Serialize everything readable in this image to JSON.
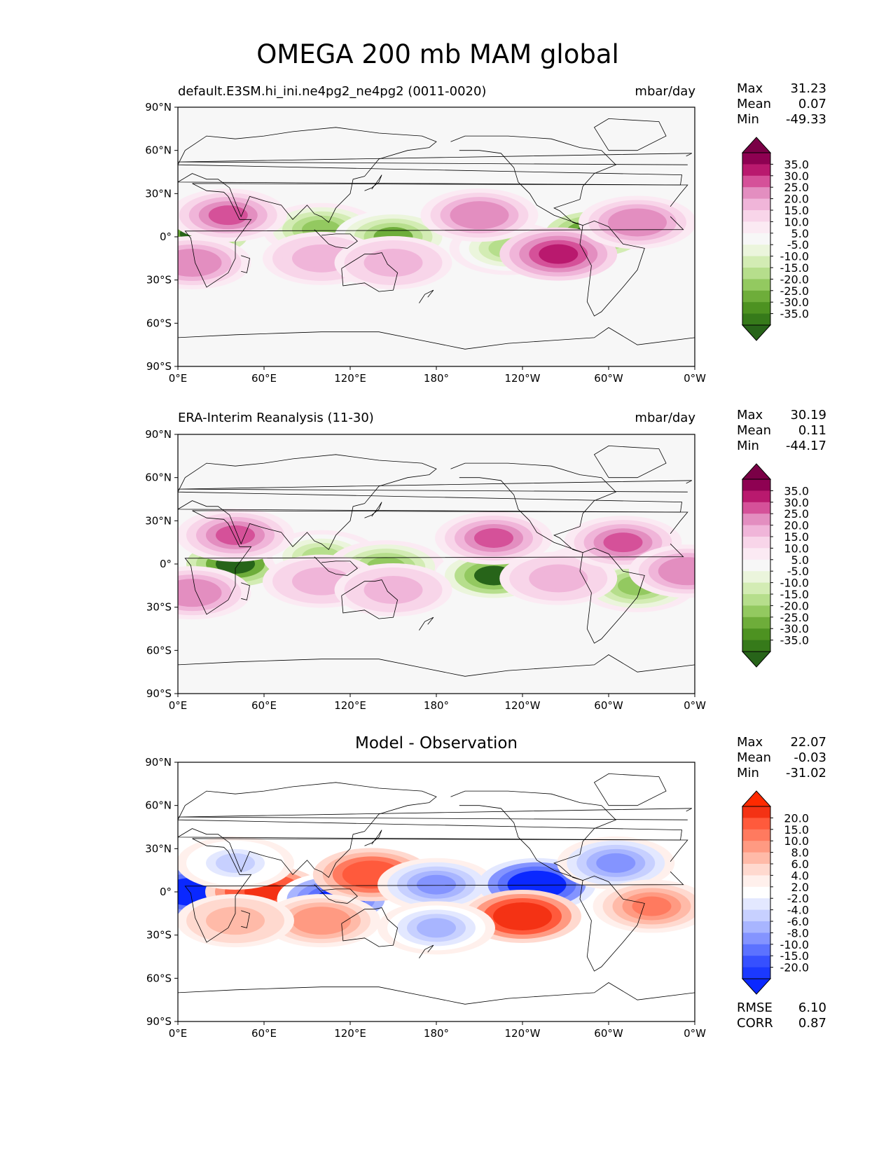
{
  "title": "OMEGA 200 mb MAM global",
  "panels": [
    {
      "left_title": "default.E3SM.hi_ini.ne4pg2_ne4pg2 (0011-0020)",
      "right_title": "mbar/day",
      "stats": [
        {
          "label": "Max",
          "value": "31.23"
        },
        {
          "label": "Mean",
          "value": "0.07"
        },
        {
          "label": "Min",
          "value": "-49.33"
        }
      ],
      "colorbar": {
        "labels": [
          "35.0",
          "30.0",
          "25.0",
          "20.0",
          "15.0",
          "10.0",
          "5.0",
          "-5.0",
          "-10.0",
          "-15.0",
          "-20.0",
          "-25.0",
          "-30.0",
          "-35.0"
        ],
        "colors": [
          "#7a0046",
          "#8e0152",
          "#b9196e",
          "#d55199",
          "#e38ec0",
          "#f0b5d9",
          "#f8d5e9",
          "#fbeaf3",
          "#f7f7f7",
          "#ebf5dc",
          "#d3ecb4",
          "#b6de8c",
          "#93c960",
          "#6ead3a",
          "#4d9221",
          "#367a1a",
          "#276419"
        ]
      }
    },
    {
      "left_title": "ERA-Interim Reanalysis (11-30)",
      "right_title": "mbar/day",
      "stats": [
        {
          "label": "Max",
          "value": "30.19"
        },
        {
          "label": "Mean",
          "value": "0.11"
        },
        {
          "label": "Min",
          "value": "-44.17"
        }
      ],
      "colorbar": {
        "labels": [
          "35.0",
          "30.0",
          "25.0",
          "20.0",
          "15.0",
          "10.0",
          "5.0",
          "-5.0",
          "-10.0",
          "-15.0",
          "-20.0",
          "-25.0",
          "-30.0",
          "-35.0"
        ],
        "colors": [
          "#7a0046",
          "#8e0152",
          "#b9196e",
          "#d55199",
          "#e38ec0",
          "#f0b5d9",
          "#f8d5e9",
          "#fbeaf3",
          "#f7f7f7",
          "#ebf5dc",
          "#d3ecb4",
          "#b6de8c",
          "#93c960",
          "#6ead3a",
          "#4d9221",
          "#367a1a",
          "#276419"
        ]
      }
    },
    {
      "center_title": "Model - Observation",
      "stats": [
        {
          "label": "Max",
          "value": "22.07"
        },
        {
          "label": "Mean",
          "value": "-0.03"
        },
        {
          "label": "Min",
          "value": "-31.02"
        }
      ],
      "extra_stats": [
        {
          "label": "RMSE",
          "value": "6.10"
        },
        {
          "label": "CORR",
          "value": "0.87"
        }
      ],
      "colorbar": {
        "labels": [
          "20.0",
          "15.0",
          "10.0",
          "8.0",
          "6.0",
          "4.0",
          "2.0",
          "-2.0",
          "-4.0",
          "-6.0",
          "-8.0",
          "-10.0",
          "-15.0",
          "-20.0"
        ],
        "colors": [
          "#ff2a00",
          "#f43214",
          "#ff5a3c",
          "#ff7a5f",
          "#ff9a82",
          "#ffbaa8",
          "#ffd9cf",
          "#fff0ec",
          "#ffffff",
          "#e3e8ff",
          "#c7d0ff",
          "#a8b5ff",
          "#8494ff",
          "#5c72ff",
          "#3650ff",
          "#1b39ff",
          "#0a28ff"
        ]
      }
    }
  ],
  "x_ticks": [
    "0°E",
    "60°E",
    "120°E",
    "180°",
    "120°W",
    "60°W",
    "0°W"
  ],
  "y_ticks": [
    "90°N",
    "60°N",
    "30°N",
    "0°",
    "30°S",
    "60°S",
    "90°S"
  ],
  "chart_data": [
    {
      "type": "heatmap",
      "title": "default.E3SM.hi_ini.ne4pg2_ne4pg2 (0011-0020)",
      "units": "mbar/day",
      "x_range": [
        0,
        360
      ],
      "y_range": [
        -90,
        90
      ],
      "stats": {
        "max": 31.23,
        "mean": 0.07,
        "min": -49.33
      },
      "levels": [
        -35,
        -30,
        -25,
        -20,
        -15,
        -10,
        -5,
        5,
        10,
        15,
        20,
        25,
        30,
        35
      ],
      "features": [
        {
          "lon": 15,
          "lat": 2,
          "value": -40
        },
        {
          "lon": 290,
          "lat": 2,
          "value": -40
        },
        {
          "lon": 100,
          "lat": 5,
          "value": -25
        },
        {
          "lon": 150,
          "lat": 0,
          "value": -30
        },
        {
          "lon": 230,
          "lat": -8,
          "value": -20
        },
        {
          "lon": 35,
          "lat": 15,
          "value": 25
        },
        {
          "lon": 10,
          "lat": -18,
          "value": 20
        },
        {
          "lon": 100,
          "lat": -15,
          "value": 15
        },
        {
          "lon": 150,
          "lat": -18,
          "value": 15
        },
        {
          "lon": 210,
          "lat": 15,
          "value": 20
        },
        {
          "lon": 265,
          "lat": -12,
          "value": 30
        },
        {
          "lon": 320,
          "lat": 10,
          "value": 20
        }
      ]
    },
    {
      "type": "heatmap",
      "title": "ERA-Interim Reanalysis (11-30)",
      "units": "mbar/day",
      "x_range": [
        0,
        360
      ],
      "y_range": [
        -90,
        90
      ],
      "stats": {
        "max": 30.19,
        "mean": 0.11,
        "min": -44.17
      },
      "levels": [
        -35,
        -30,
        -25,
        -20,
        -15,
        -10,
        -5,
        5,
        10,
        15,
        20,
        25,
        30,
        35
      ],
      "features": [
        {
          "lon": 40,
          "lat": 0,
          "value": -40
        },
        {
          "lon": 100,
          "lat": 5,
          "value": -20
        },
        {
          "lon": 145,
          "lat": -2,
          "value": -25
        },
        {
          "lon": 220,
          "lat": -8,
          "value": -35
        },
        {
          "lon": 290,
          "lat": -5,
          "value": -20
        },
        {
          "lon": 320,
          "lat": -15,
          "value": -25
        },
        {
          "lon": 40,
          "lat": 20,
          "value": 25
        },
        {
          "lon": 10,
          "lat": -20,
          "value": 20
        },
        {
          "lon": 100,
          "lat": -12,
          "value": 15
        },
        {
          "lon": 150,
          "lat": -18,
          "value": 15
        },
        {
          "lon": 220,
          "lat": 18,
          "value": 25
        },
        {
          "lon": 265,
          "lat": -10,
          "value": 15
        },
        {
          "lon": 310,
          "lat": 15,
          "value": 25
        },
        {
          "lon": 355,
          "lat": -5,
          "value": 20
        }
      ]
    },
    {
      "type": "heatmap",
      "title": "Model - Observation",
      "x_range": [
        0,
        360
      ],
      "y_range": [
        -90,
        90
      ],
      "stats": {
        "max": 22.07,
        "mean": -0.03,
        "min": -31.02,
        "rmse": 6.1,
        "corr": 0.87
      },
      "levels": [
        -20,
        -15,
        -10,
        -8,
        -6,
        -4,
        -2,
        2,
        4,
        6,
        8,
        10,
        15,
        20
      ],
      "features": [
        {
          "lon": 10,
          "lat": 0,
          "value": -25
        },
        {
          "lon": 60,
          "lat": 0,
          "value": 18
        },
        {
          "lon": 110,
          "lat": -5,
          "value": -20
        },
        {
          "lon": 135,
          "lat": 12,
          "value": 15
        },
        {
          "lon": 180,
          "lat": 5,
          "value": -10
        },
        {
          "lon": 250,
          "lat": 5,
          "value": -30
        },
        {
          "lon": 240,
          "lat": -17,
          "value": 20
        },
        {
          "lon": 305,
          "lat": 20,
          "value": -10
        },
        {
          "lon": 330,
          "lat": -10,
          "value": 10
        },
        {
          "lon": 100,
          "lat": -20,
          "value": 8
        },
        {
          "lon": 180,
          "lat": -25,
          "value": -8
        },
        {
          "lon": 40,
          "lat": 20,
          "value": -6
        },
        {
          "lon": 40,
          "lat": -20,
          "value": 6
        }
      ]
    }
  ]
}
